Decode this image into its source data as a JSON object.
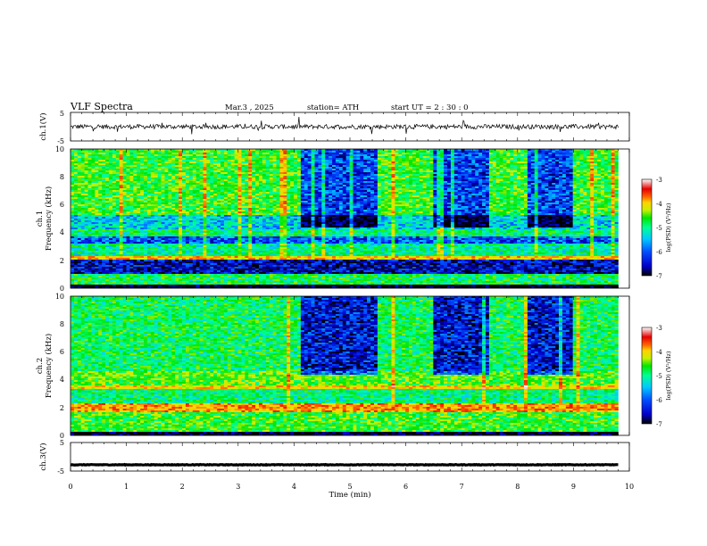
{
  "header": {
    "title": "VLF  Spectra",
    "date": "Mar.3  , 2025",
    "station": "station= ATH",
    "start_ut": "start  UT  =   2  : 30 : 0"
  },
  "chart_data": [
    {
      "type": "line",
      "panel": "ch1-waveform",
      "ylabel": "ch.1(V)",
      "ylim": [
        -5,
        5
      ],
      "yticks": [
        "5",
        "-5"
      ],
      "xlim": [
        0,
        10
      ],
      "series": [
        {
          "name": "",
          "mean": 0,
          "noise_amplitude": 0.8,
          "xrange": [
            0,
            9.8
          ]
        }
      ]
    },
    {
      "type": "heatmap",
      "panel": "ch1-spectrogram",
      "ylabel": "ch.1\nFrequency  (kHz)",
      "ylim": [
        0,
        10
      ],
      "yticks": [
        "0",
        "2",
        "4",
        "6",
        "8",
        "10"
      ],
      "xlim": [
        0,
        9.8
      ],
      "colorbar": {
        "label": "log(PSD) (V²/Hz)",
        "range": [
          -7,
          -3
        ],
        "ticks": [
          "-3",
          "-4",
          "-5",
          "-6",
          "-7"
        ]
      },
      "bands_khz": [
        {
          "range": [
            0,
            0.2
          ],
          "level": -7
        },
        {
          "range": [
            0.2,
            1.0
          ],
          "level": -5.2
        },
        {
          "range": [
            1.0,
            2.0
          ],
          "level": -6.6
        },
        {
          "range": [
            2.0,
            2.3
          ],
          "level": -4.2
        },
        {
          "range": [
            2.3,
            3.2
          ],
          "level": -5.4
        },
        {
          "range": [
            3.2,
            3.7
          ],
          "level": -6.2
        },
        {
          "range": [
            3.7,
            4.2
          ],
          "level": -5.3
        },
        {
          "range": [
            4.2,
            5.2
          ],
          "level": -5.7
        },
        {
          "range": [
            5.2,
            10
          ],
          "level": -5.0
        }
      ],
      "quiet_intervals_min": [
        [
          4.1,
          5.5
        ],
        [
          6.5,
          7.5
        ],
        [
          8.2,
          9.0
        ]
      ]
    },
    {
      "type": "heatmap",
      "panel": "ch2-spectrogram",
      "ylabel": "ch.2\nFrequency  (kHz)",
      "ylim": [
        0,
        10
      ],
      "yticks": [
        "0",
        "2",
        "4",
        "6",
        "8",
        "10"
      ],
      "xlim": [
        0,
        9.8
      ],
      "colorbar": {
        "label": "log(PSD) (V²/Hz)",
        "range": [
          -7,
          -3
        ],
        "ticks": [
          "-3",
          "-4",
          "-5",
          "-6",
          "-7"
        ]
      },
      "bands_khz": [
        {
          "range": [
            0,
            0.2
          ],
          "level": -7
        },
        {
          "range": [
            0.2,
            1.7
          ],
          "level": -5.0
        },
        {
          "range": [
            1.7,
            2.3
          ],
          "level": -4.0
        },
        {
          "range": [
            2.3,
            3.3
          ],
          "level": -5.3
        },
        {
          "range": [
            3.3,
            3.6
          ],
          "level": -4.3
        },
        {
          "range": [
            3.6,
            4.6
          ],
          "level": -4.9
        },
        {
          "range": [
            4.6,
            10
          ],
          "level": -5.2
        }
      ],
      "quiet_intervals_min": [
        [
          4.1,
          5.5
        ],
        [
          6.5,
          7.5
        ],
        [
          8.2,
          9.0
        ]
      ]
    },
    {
      "type": "line",
      "panel": "ch3-waveform",
      "ylabel": "ch.3(V)",
      "ylim": [
        -5,
        5
      ],
      "yticks": [
        "5",
        "-5"
      ],
      "xlim": [
        0,
        10
      ],
      "xlabel": "Time  (min)",
      "xticks": [
        "0",
        "1",
        "2",
        "3",
        "4",
        "5",
        "6",
        "7",
        "8",
        "9",
        "10"
      ],
      "series": [
        {
          "name": "",
          "mean": -2.8,
          "noise_amplitude": 0.1,
          "xrange": [
            0,
            9.8
          ]
        }
      ]
    }
  ],
  "colors": {
    "axis": "#000000",
    "trace": "#000000",
    "colormap": [
      "#000000",
      "#0000cc",
      "#0050ff",
      "#00c8ff",
      "#00ff96",
      "#00e600",
      "#c8f000",
      "#ffd200",
      "#ff6400",
      "#e60000",
      "#ffffff"
    ]
  }
}
